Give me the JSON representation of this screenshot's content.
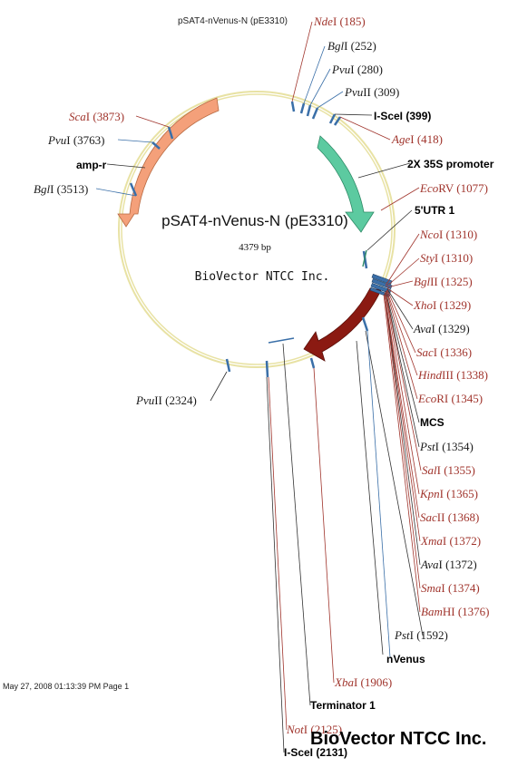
{
  "header": {
    "text": "pSAT4-nVenus-N (pE3310)"
  },
  "center": {
    "name": "pSAT4-nVenus-N (pE3310)",
    "size": "4379 bp",
    "company": "BioVector NTCC Inc."
  },
  "footer": {
    "timestamp": "May 27, 2008 01:13:39 PM Page 1"
  },
  "watermark": "BioVector NTCC Inc.",
  "colors": {
    "backbone": "#e8e2a4",
    "enzyme_unique": "#a0342c",
    "enzyme_other": "#1a1a1a",
    "tick": "#3a6fa8",
    "amp_r": "#f4a07a",
    "promoter_35s": "#5ccaa0",
    "nvenus": "#8b1a12"
  },
  "sites": [
    {
      "name": "NdeI",
      "italic": "Nde",
      "rest": "I",
      "pos": "(185)",
      "color": "red"
    },
    {
      "name": "BglI",
      "italic": "Bgl",
      "rest": "I",
      "pos": "(252)",
      "color": "black"
    },
    {
      "name": "PvuI",
      "italic": "Pvu",
      "rest": "I",
      "pos": "(280)",
      "color": "black"
    },
    {
      "name": "PvuII",
      "italic": "Pvu",
      "rest": "II",
      "pos": "(309)",
      "color": "black"
    },
    {
      "name": "AgeI",
      "italic": "Age",
      "rest": "I",
      "pos": "(418)",
      "color": "red"
    },
    {
      "name": "EcoRV",
      "italic": "Eco",
      "rest": "RV",
      "pos": "(1077)",
      "color": "red"
    },
    {
      "name": "NcoI",
      "italic": "Nco",
      "rest": "I",
      "pos": "(1310)",
      "color": "red"
    },
    {
      "name": "StyI",
      "italic": "Sty",
      "rest": "I",
      "pos": "(1310)",
      "color": "red"
    },
    {
      "name": "BglII",
      "italic": "Bgl",
      "rest": "II",
      "pos": "(1325)",
      "color": "red"
    },
    {
      "name": "XhoI",
      "italic": "Xho",
      "rest": "I",
      "pos": "(1329)",
      "color": "red"
    },
    {
      "name": "AvaI",
      "italic": "Ava",
      "rest": "I",
      "pos": "(1329)",
      "color": "black"
    },
    {
      "name": "SacI",
      "italic": "Sac",
      "rest": "I",
      "pos": "(1336)",
      "color": "red"
    },
    {
      "name": "HindIII",
      "italic": "Hind",
      "rest": "III",
      "pos": "(1338)",
      "color": "red"
    },
    {
      "name": "EcoRI",
      "italic": "Eco",
      "rest": "RI",
      "pos": "(1345)",
      "color": "red"
    },
    {
      "name": "PstI",
      "italic": "Pst",
      "rest": "I",
      "pos": "(1354)",
      "color": "black"
    },
    {
      "name": "SalI",
      "italic": "Sal",
      "rest": "I",
      "pos": "(1355)",
      "color": "red"
    },
    {
      "name": "KpnI",
      "italic": "Kpn",
      "rest": "I",
      "pos": "(1365)",
      "color": "red"
    },
    {
      "name": "SacII",
      "italic": "Sac",
      "rest": "II",
      "pos": "(1368)",
      "color": "red"
    },
    {
      "name": "XmaI",
      "italic": "Xma",
      "rest": "I",
      "pos": "(1372)",
      "color": "red"
    },
    {
      "name": "AvaI-2",
      "italic": "Ava",
      "rest": "I",
      "pos": "(1372)",
      "color": "black"
    },
    {
      "name": "SmaI",
      "italic": "Sma",
      "rest": "I",
      "pos": "(1374)",
      "color": "red"
    },
    {
      "name": "BamHI",
      "italic": "Bam",
      "rest": "HI",
      "pos": "(1376)",
      "color": "red"
    },
    {
      "name": "PstI-2",
      "italic": "Pst",
      "rest": "I",
      "pos": "(1592)",
      "color": "black"
    },
    {
      "name": "XbaI",
      "italic": "Xba",
      "rest": "I",
      "pos": "(1906)",
      "color": "red"
    },
    {
      "name": "NotI",
      "italic": "Not",
      "rest": "I",
      "pos": "(2125)",
      "color": "red"
    },
    {
      "name": "PvuII-2",
      "italic": "Pvu",
      "rest": "II",
      "pos": "(2324)",
      "color": "black"
    },
    {
      "name": "BglI-2",
      "italic": "Bgl",
      "rest": "I",
      "pos": "(3513)",
      "color": "black"
    },
    {
      "name": "PvuI-2",
      "italic": "Pvu",
      "rest": "I",
      "pos": "(3763)",
      "color": "black"
    },
    {
      "name": "ScaI",
      "italic": "Sca",
      "rest": "I",
      "pos": "(3873)",
      "color": "red"
    }
  ],
  "features": {
    "isce1_top": "I-SceI (399)",
    "promoter_35s": "2X 35S promoter",
    "utr5": "5'UTR 1",
    "mcs": "MCS",
    "nvenus": "nVenus",
    "terminator": "Terminator 1",
    "isce1_bottom": "I-SceI (2131)",
    "amp_r": "amp-r"
  }
}
